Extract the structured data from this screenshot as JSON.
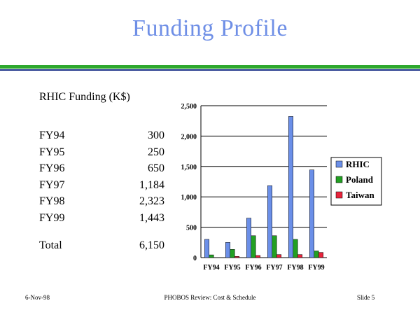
{
  "slide": {
    "title": "Funding Profile"
  },
  "funding": {
    "heading": "RHIC Funding (K$)",
    "rows": [
      {
        "year": "FY94",
        "value": "300"
      },
      {
        "year": "FY95",
        "value": "250"
      },
      {
        "year": "FY96",
        "value": "650"
      },
      {
        "year": "FY97",
        "value": "1,184"
      },
      {
        "year": "FY98",
        "value": "2,323"
      },
      {
        "year": "FY99",
        "value": "1,443"
      }
    ],
    "total_label": "Total",
    "total_value": "6,150"
  },
  "footer": {
    "date": "6-Nov-98",
    "center": "PHOBOS Review: Cost & Schedule",
    "slide": "Slide 5"
  },
  "chart_data": {
    "type": "bar",
    "title": "",
    "xlabel": "",
    "ylabel": "",
    "categories": [
      "FY94",
      "FY95",
      "FY96",
      "FY97",
      "FY98",
      "FY99"
    ],
    "ylim": [
      0,
      2500
    ],
    "yticks": [
      0,
      500,
      1000,
      1500,
      2000,
      2500
    ],
    "ytick_labels": [
      "0",
      "500",
      "1,000",
      "1,500",
      "2,000",
      "2,500"
    ],
    "grid": true,
    "legend": "right",
    "series": [
      {
        "name": "RHIC",
        "color": "#6b8fe8",
        "values": [
          300,
          250,
          650,
          1184,
          2323,
          1443
        ]
      },
      {
        "name": "Poland",
        "color": "#22a022",
        "values": [
          45,
          135,
          360,
          360,
          300,
          110
        ]
      },
      {
        "name": "Taiwan",
        "color": "#e8243c",
        "values": [
          0,
          20,
          35,
          50,
          50,
          85
        ]
      }
    ]
  }
}
